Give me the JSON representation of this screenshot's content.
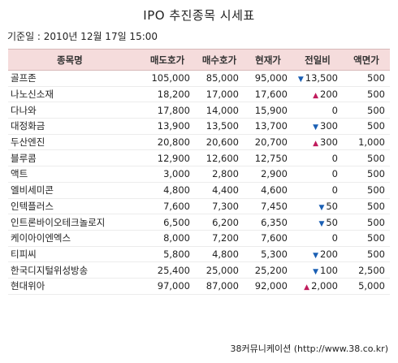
{
  "title": "IPO 추진종목 시세표",
  "base_date": "기준일 : 2010년 12월 17일 15:00",
  "columns": [
    "종목명",
    "매도호가",
    "매수호가",
    "현재가",
    "전일비",
    "액면가"
  ],
  "rows": [
    {
      "name": "골프존",
      "ask": "105,000",
      "bid": "85,000",
      "price": "95,000",
      "dir": "down",
      "change": "13,500",
      "par": "500"
    },
    {
      "name": "나노신소재",
      "ask": "18,200",
      "bid": "17,000",
      "price": "17,600",
      "dir": "up",
      "change": "200",
      "par": "500"
    },
    {
      "name": "다나와",
      "ask": "17,800",
      "bid": "14,000",
      "price": "15,900",
      "dir": "",
      "change": "0",
      "par": "500"
    },
    {
      "name": "대정화금",
      "ask": "13,900",
      "bid": "13,500",
      "price": "13,700",
      "dir": "down",
      "change": "300",
      "par": "500"
    },
    {
      "name": "두산엔진",
      "ask": "20,800",
      "bid": "20,600",
      "price": "20,700",
      "dir": "up",
      "change": "300",
      "par": "1,000"
    },
    {
      "name": "블루콤",
      "ask": "12,900",
      "bid": "12,600",
      "price": "12,750",
      "dir": "",
      "change": "0",
      "par": "500"
    },
    {
      "name": "액트",
      "ask": "3,000",
      "bid": "2,800",
      "price": "2,900",
      "dir": "",
      "change": "0",
      "par": "500"
    },
    {
      "name": "엘비세미콘",
      "ask": "4,800",
      "bid": "4,400",
      "price": "4,600",
      "dir": "",
      "change": "0",
      "par": "500"
    },
    {
      "name": "인텍플러스",
      "ask": "7,600",
      "bid": "7,300",
      "price": "7,450",
      "dir": "down",
      "change": "50",
      "par": "500"
    },
    {
      "name": "인트론바이오테크놀로지",
      "ask": "6,500",
      "bid": "6,200",
      "price": "6,350",
      "dir": "down",
      "change": "50",
      "par": "500"
    },
    {
      "name": "케이아이엔엑스",
      "ask": "8,000",
      "bid": "7,200",
      "price": "7,600",
      "dir": "",
      "change": "0",
      "par": "500"
    },
    {
      "name": "티피씨",
      "ask": "5,800",
      "bid": "4,800",
      "price": "5,300",
      "dir": "down",
      "change": "200",
      "par": "500"
    },
    {
      "name": "한국디지털위성방송",
      "ask": "25,400",
      "bid": "25,000",
      "price": "25,200",
      "dir": "down",
      "change": "100",
      "par": "2,500"
    },
    {
      "name": "현대위아",
      "ask": "97,000",
      "bid": "87,000",
      "price": "92,000",
      "dir": "up",
      "change": "2,000",
      "par": "5,000"
    }
  ],
  "symbols": {
    "up": "▲",
    "down": "▼"
  },
  "colors": {
    "up": "#c01b5c",
    "down": "#1a5fb4",
    "header_bg": "#f5dcdc"
  },
  "footer": "38커뮤니케이션 (http://www.38.co.kr)"
}
